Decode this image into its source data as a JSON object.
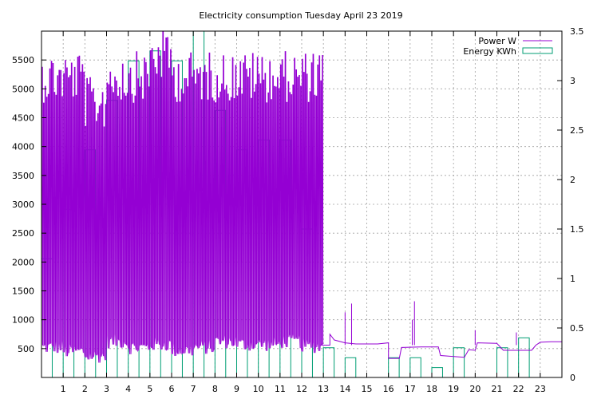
{
  "chart_data": {
    "type": "line",
    "title": "Electricity consumption Tuesday April 23 2019",
    "x_ticks": [
      1,
      2,
      3,
      4,
      5,
      6,
      7,
      8,
      9,
      10,
      11,
      12,
      13,
      14,
      15,
      16,
      17,
      18,
      19,
      20,
      21,
      22,
      23
    ],
    "xlim": [
      0,
      24
    ],
    "y_left": {
      "ticks": [
        500,
        1000,
        1500,
        2000,
        2500,
        3000,
        3500,
        4000,
        4500,
        5000,
        5500
      ],
      "ylim": [
        0,
        6000
      ]
    },
    "y_right": {
      "ticks": [
        "0",
        "0.5",
        "1",
        "1.5",
        "2",
        "2.5",
        "3",
        "3.5"
      ],
      "tick_values": [
        0,
        0.5,
        1,
        1.5,
        2,
        2.5,
        3,
        3.5
      ],
      "ylim": [
        0,
        3.5
      ]
    },
    "grid": true,
    "legend_position": "top-right",
    "series": [
      {
        "name": "Power W",
        "type": "line",
        "axis": "left",
        "color": "#9400d3",
        "hourly_profile": [
          {
            "hour": 0,
            "low": 400,
            "high": 5650
          },
          {
            "hour": 1,
            "low": 330,
            "high": 5650
          },
          {
            "hour": 2,
            "low": 250,
            "high": 5200
          },
          {
            "hour": 3,
            "low": 500,
            "high": 5650
          },
          {
            "hour": 4,
            "low": 400,
            "high": 5650
          },
          {
            "hour": 5,
            "low": 450,
            "high": 6000
          },
          {
            "hour": 6,
            "low": 350,
            "high": 5650
          },
          {
            "hour": 7,
            "low": 400,
            "high": 5650
          },
          {
            "hour": 8,
            "low": 500,
            "high": 5650
          },
          {
            "hour": 9,
            "low": 450,
            "high": 5650
          },
          {
            "hour": 10,
            "low": 450,
            "high": 5650
          },
          {
            "hour": 11,
            "low": 500,
            "high": 5650
          },
          {
            "hour": 12,
            "low": 420,
            "high": 5650
          }
        ],
        "baseline": [
          {
            "x": 12.9,
            "y": 560
          },
          {
            "x": 13.3,
            "y": 560
          },
          {
            "x": 13.3,
            "y": 750
          },
          {
            "x": 13.5,
            "y": 650
          },
          {
            "x": 14.0,
            "y": 600
          },
          {
            "x": 14.5,
            "y": 580
          },
          {
            "x": 15.5,
            "y": 580
          },
          {
            "x": 16.0,
            "y": 600
          },
          {
            "x": 16.0,
            "y": 330
          },
          {
            "x": 16.5,
            "y": 330
          },
          {
            "x": 16.6,
            "y": 520
          },
          {
            "x": 17.5,
            "y": 530
          },
          {
            "x": 18.3,
            "y": 530
          },
          {
            "x": 18.4,
            "y": 380
          },
          {
            "x": 19.5,
            "y": 350
          },
          {
            "x": 19.7,
            "y": 480
          },
          {
            "x": 20.0,
            "y": 470
          },
          {
            "x": 20.1,
            "y": 600
          },
          {
            "x": 21.0,
            "y": 590
          },
          {
            "x": 21.3,
            "y": 470
          },
          {
            "x": 22.6,
            "y": 470
          },
          {
            "x": 22.8,
            "y": 560
          },
          {
            "x": 23.0,
            "y": 610
          },
          {
            "x": 23.5,
            "y": 620
          },
          {
            "x": 24.0,
            "y": 620
          }
        ],
        "spikes": [
          {
            "x": 14.0,
            "y": 1130
          },
          {
            "x": 14.3,
            "y": 1280
          },
          {
            "x": 17.1,
            "y": 1000
          },
          {
            "x": 17.2,
            "y": 1320
          },
          {
            "x": 20.0,
            "y": 820
          },
          {
            "x": 21.9,
            "y": 780
          }
        ]
      },
      {
        "name": "Energy KWh",
        "type": "step",
        "axis": "right",
        "color": "#009e73",
        "x": [
          0,
          1,
          2,
          3,
          4,
          5,
          6,
          7,
          8,
          9,
          10,
          11,
          12,
          13,
          14,
          15,
          16,
          17,
          18,
          19,
          20,
          21,
          22,
          23
        ],
        "values": [
          1.2,
          1.7,
          2.3,
          2.8,
          3.2,
          3.3,
          3.2,
          3.5,
          2.7,
          2.3,
          2.4,
          2.4,
          1.5,
          0.3,
          0.2,
          0,
          0.2,
          0.2,
          0.1,
          0.3,
          0,
          0.3,
          0.4,
          0
        ]
      }
    ]
  }
}
